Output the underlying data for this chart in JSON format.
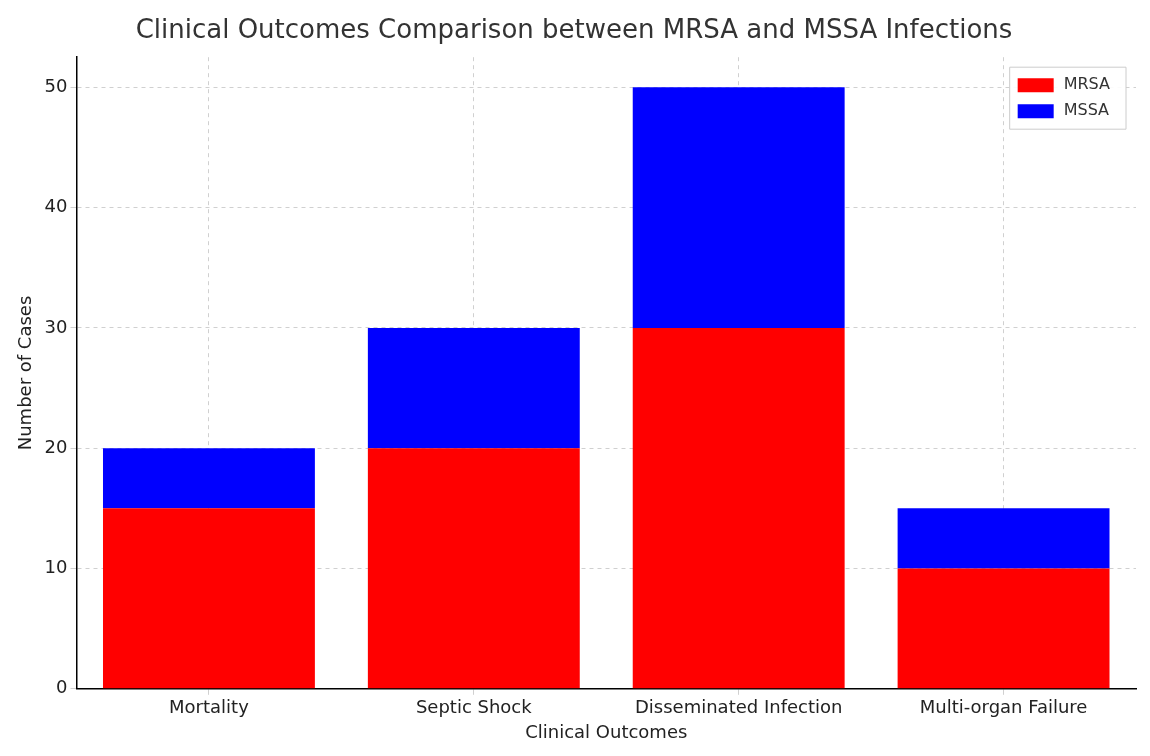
{
  "chart_data": {
    "type": "bar",
    "title": "Clinical Outcomes Comparison between MRSA and MSSA Infections",
    "xlabel": "Clinical Outcomes",
    "ylabel": "Number of Cases",
    "categories": [
      "Mortality",
      "Septic Shock",
      "Disseminated Infection",
      "Multi-organ Failure"
    ],
    "series": [
      {
        "name": "MRSA",
        "color": "#ff0000",
        "values": [
          15,
          20,
          30,
          10
        ]
      },
      {
        "name": "MSSA",
        "color": "#0000ff",
        "values": [
          5,
          10,
          20,
          5
        ]
      }
    ],
    "stacked": true,
    "ylim": [
      0,
      52.5
    ],
    "yticks": [
      0,
      10,
      20,
      30,
      40,
      50
    ],
    "grid": true,
    "legend": "top right"
  }
}
